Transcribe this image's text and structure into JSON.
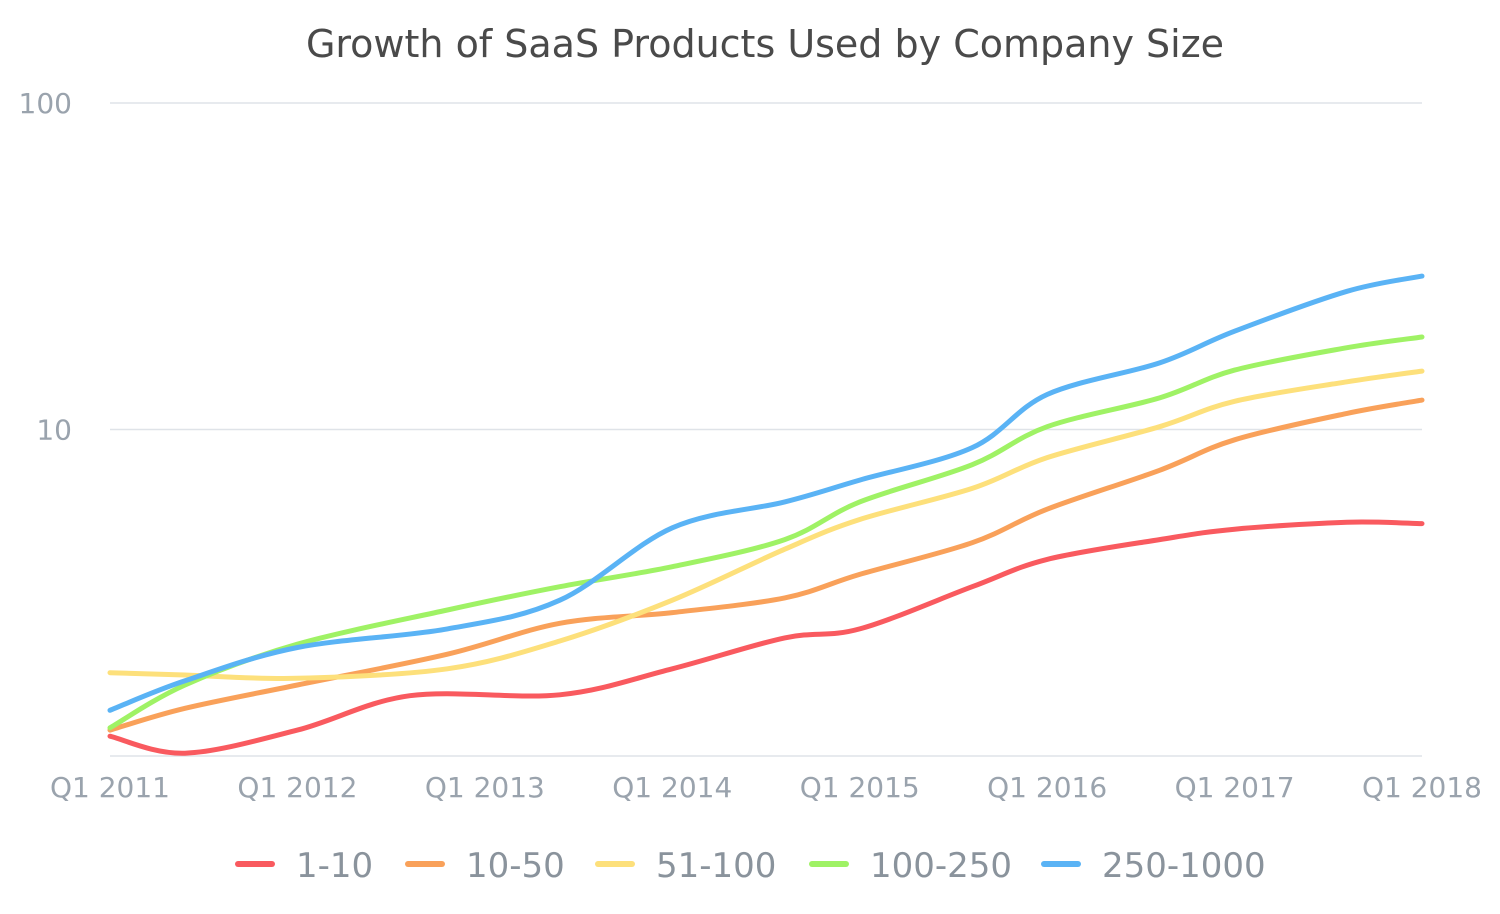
{
  "chart_data": {
    "type": "line",
    "title": "Growth of SaaS Products Used by Company Size",
    "xlabel": "",
    "ylabel": "",
    "y_scale": "log",
    "ylim": [
      1,
      100
    ],
    "y_ticks": [
      {
        "value": 100,
        "label": "100"
      },
      {
        "value": 10,
        "label": "10"
      }
    ],
    "x": [
      "Q1 2011",
      "Q1 2012",
      "Q1 2013",
      "Q1 2014",
      "Q1 2015",
      "Q1 2016",
      "Q1 2017",
      "Q1 2018"
    ],
    "x_index_sampled": [
      0,
      0.4,
      1.0,
      1.8,
      2.4,
      3.0,
      3.6,
      4.0,
      4.6,
      5.0,
      5.6,
      6.0,
      6.6,
      7.0
    ],
    "grid": true,
    "legend_position": "bottom",
    "series": [
      {
        "name": "1-10",
        "color": "#f95a5f",
        "points": [
          [
            0,
            1.15
          ],
          [
            0.4,
            1.02
          ],
          [
            1.0,
            1.2
          ],
          [
            1.6,
            1.53
          ],
          [
            2.4,
            1.54
          ],
          [
            3.0,
            1.85
          ],
          [
            3.6,
            2.3
          ],
          [
            4.0,
            2.45
          ],
          [
            4.6,
            3.3
          ],
          [
            5.0,
            4.0
          ],
          [
            5.6,
            4.6
          ],
          [
            6.0,
            4.95
          ],
          [
            6.6,
            5.2
          ],
          [
            7.0,
            5.15
          ]
        ]
      },
      {
        "name": "10-50",
        "color": "#f9a15a",
        "points": [
          [
            0,
            1.2
          ],
          [
            0.4,
            1.4
          ],
          [
            1.0,
            1.65
          ],
          [
            1.8,
            2.05
          ],
          [
            2.4,
            2.55
          ],
          [
            3.0,
            2.75
          ],
          [
            3.6,
            3.05
          ],
          [
            4.0,
            3.6
          ],
          [
            4.6,
            4.5
          ],
          [
            5.0,
            5.7
          ],
          [
            5.6,
            7.5
          ],
          [
            6.0,
            9.3
          ],
          [
            6.6,
            11.2
          ],
          [
            7.0,
            12.3
          ]
        ]
      },
      {
        "name": "51-100",
        "color": "#fde07b",
        "points": [
          [
            0,
            1.8
          ],
          [
            0.4,
            1.77
          ],
          [
            1.0,
            1.73
          ],
          [
            1.8,
            1.85
          ],
          [
            2.4,
            2.25
          ],
          [
            3.0,
            3.0
          ],
          [
            3.6,
            4.3
          ],
          [
            4.0,
            5.3
          ],
          [
            4.6,
            6.6
          ],
          [
            5.0,
            8.2
          ],
          [
            5.6,
            10.2
          ],
          [
            6.0,
            12.2
          ],
          [
            6.6,
            14.0
          ],
          [
            7.0,
            15.1
          ]
        ]
      },
      {
        "name": "100-250",
        "color": "#9ff265",
        "points": [
          [
            0,
            1.22
          ],
          [
            0.4,
            1.65
          ],
          [
            1.0,
            2.2
          ],
          [
            1.8,
            2.8
          ],
          [
            2.4,
            3.3
          ],
          [
            3.0,
            3.8
          ],
          [
            3.6,
            4.6
          ],
          [
            4.0,
            6.0
          ],
          [
            4.6,
            7.8
          ],
          [
            5.0,
            10.2
          ],
          [
            5.6,
            12.5
          ],
          [
            6.0,
            15.2
          ],
          [
            6.6,
            17.8
          ],
          [
            7.0,
            19.2
          ]
        ]
      },
      {
        "name": "250-1000",
        "color": "#5ab3f5",
        "points": [
          [
            0,
            1.38
          ],
          [
            0.4,
            1.7
          ],
          [
            1.0,
            2.15
          ],
          [
            1.8,
            2.45
          ],
          [
            2.4,
            3.0
          ],
          [
            3.0,
            5.0
          ],
          [
            3.6,
            6.0
          ],
          [
            4.0,
            7.0
          ],
          [
            4.6,
            8.8
          ],
          [
            5.0,
            12.8
          ],
          [
            5.6,
            16.0
          ],
          [
            6.0,
            20.0
          ],
          [
            6.6,
            26.5
          ],
          [
            7.0,
            29.5
          ]
        ]
      }
    ]
  }
}
